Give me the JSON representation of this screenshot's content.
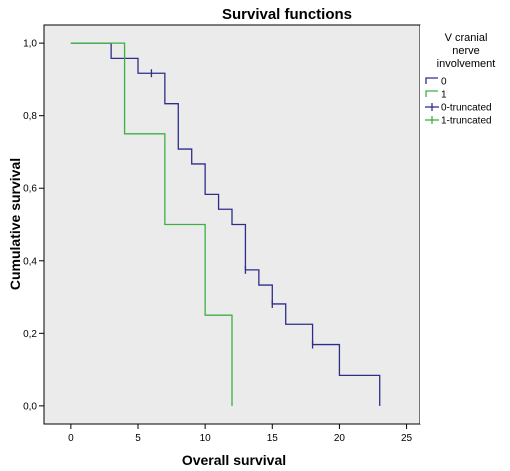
{
  "chart_data": {
    "type": "line",
    "title": "Survival functions",
    "xlabel": "Overall survival",
    "ylabel": "Cumulative survival",
    "xlim": [
      -2,
      26
    ],
    "ylim": [
      -0.05,
      1.05
    ],
    "x_ticks": [
      {
        "value": 0,
        "label": "0"
      },
      {
        "value": 5,
        "label": "5"
      },
      {
        "value": 10,
        "label": "10"
      },
      {
        "value": 15,
        "label": "15"
      },
      {
        "value": 20,
        "label": "20"
      },
      {
        "value": 25,
        "label": "25"
      }
    ],
    "y_ticks": [
      {
        "value": 0.0,
        "label": "0,0"
      },
      {
        "value": 0.2,
        "label": "0,2"
      },
      {
        "value": 0.4,
        "label": "0,4"
      },
      {
        "value": 0.6,
        "label": "0,6"
      },
      {
        "value": 0.8,
        "label": "0,8"
      },
      {
        "value": 1.0,
        "label": "1,0"
      }
    ],
    "legend_title": "V cranial nerve involvement",
    "legend_title_lines": [
      "V cranial",
      "nerve",
      "involvement"
    ],
    "legend_position": "right",
    "legend_entries": [
      {
        "label": "0",
        "color": "#2e2e8a",
        "marker": "line"
      },
      {
        "label": "1",
        "color": "#3cb043",
        "marker": "line"
      },
      {
        "label": "0-truncated",
        "color": "#2e2e8a",
        "marker": "plus"
      },
      {
        "label": "1-truncated",
        "color": "#3cb043",
        "marker": "plus"
      }
    ],
    "series": [
      {
        "name": "0",
        "color": "#2e2e8a",
        "steps": [
          [
            0,
            1.0
          ],
          [
            3,
            0.958
          ],
          [
            5,
            0.917
          ],
          [
            7,
            0.833
          ],
          [
            8,
            0.708
          ],
          [
            9,
            0.667
          ],
          [
            10,
            0.583
          ],
          [
            11,
            0.542
          ],
          [
            12,
            0.5
          ],
          [
            13,
            0.375
          ],
          [
            14,
            0.333
          ],
          [
            15,
            0.281
          ],
          [
            16,
            0.225
          ],
          [
            18,
            0.169
          ],
          [
            20,
            0.084
          ],
          [
            23,
            0.0
          ]
        ],
        "censored": [
          [
            6,
            0.917
          ],
          [
            13,
            0.375
          ],
          [
            15,
            0.281
          ],
          [
            18,
            0.169
          ]
        ]
      },
      {
        "name": "1",
        "color": "#3cb043",
        "steps": [
          [
            0,
            1.0
          ],
          [
            4,
            0.75
          ],
          [
            7,
            0.5
          ],
          [
            10,
            0.25
          ],
          [
            12,
            0.0
          ]
        ],
        "censored": []
      }
    ],
    "plot_background": "#ebebeb",
    "grid": false
  }
}
